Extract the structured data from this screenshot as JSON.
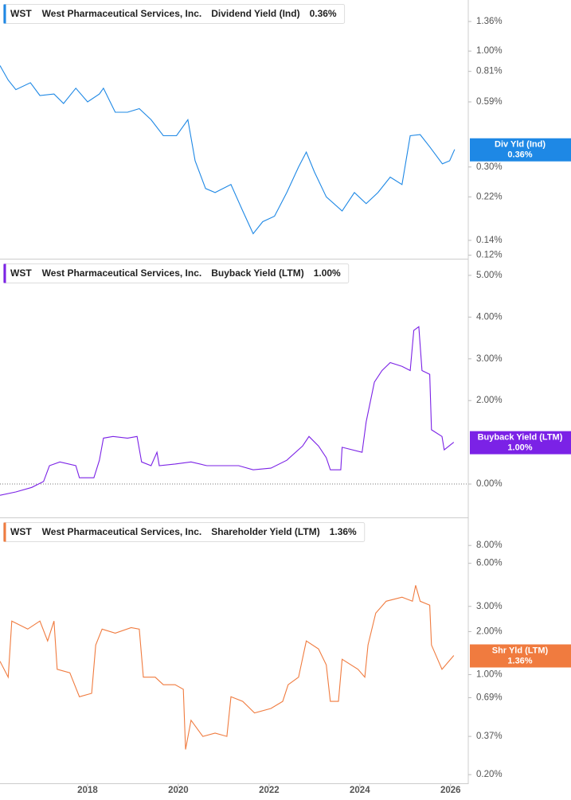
{
  "chart_data": [
    {
      "type": "line",
      "ticker": "WST",
      "company": "West Pharmaceutical Services, Inc.",
      "log": true,
      "xlim": [
        2016.07,
        2026.39
      ],
      "ylim": [
        0.1157,
        1.7
      ],
      "yticks": [
        {
          "value": 1.36,
          "label": "1.36%"
        },
        {
          "value": 1.0,
          "label": "1.00%"
        },
        {
          "value": 0.81,
          "label": "0.81%"
        },
        {
          "value": 0.59,
          "label": "0.59%"
        },
        {
          "value": 0.3,
          "label": "0.30%"
        },
        {
          "value": 0.22,
          "label": "0.22%"
        },
        {
          "value": 0.14,
          "label": "0.14%"
        },
        {
          "value": 0.12,
          "label": "0.12%"
        }
      ],
      "series": [
        {
          "name": "Dividend Yield (Ind)",
          "short_name": "Div Yld (Ind)",
          "last_label": "0.36%",
          "color": "#1e88e5",
          "x": [
            2016.07,
            2016.25,
            2016.42,
            2016.74,
            2016.95,
            2017.26,
            2017.47,
            2017.74,
            2018.0,
            2018.26,
            2018.35,
            2018.61,
            2018.88,
            2019.14,
            2019.4,
            2019.67,
            2019.96,
            2020.21,
            2020.37,
            2020.6,
            2020.81,
            2021.16,
            2021.42,
            2021.65,
            2021.86,
            2022.12,
            2022.39,
            2022.65,
            2022.82,
            2023.0,
            2023.26,
            2023.61,
            2023.88,
            2024.14,
            2024.4,
            2024.67,
            2024.93,
            2025.11,
            2025.33,
            2025.54,
            2025.82,
            2025.98,
            2026.09
          ],
          "values": [
            0.86,
            0.74,
            0.67,
            0.72,
            0.63,
            0.64,
            0.58,
            0.68,
            0.59,
            0.64,
            0.68,
            0.53,
            0.53,
            0.55,
            0.49,
            0.415,
            0.415,
            0.49,
            0.32,
            0.24,
            0.23,
            0.25,
            0.19,
            0.15,
            0.17,
            0.18,
            0.23,
            0.3,
            0.35,
            0.285,
            0.22,
            0.19,
            0.23,
            0.205,
            0.23,
            0.27,
            0.25,
            0.415,
            0.42,
            0.37,
            0.31,
            0.32,
            0.36
          ]
        }
      ]
    },
    {
      "type": "line",
      "ticker": "WST",
      "company": "West Pharmaceutical Services, Inc.",
      "log": false,
      "zero_line": true,
      "xlim": [
        2016.07,
        2026.39
      ],
      "ylim": [
        -0.8,
        5.38
      ],
      "yticks": [
        {
          "value": 5,
          "label": "5.00%"
        },
        {
          "value": 4,
          "label": "4.00%"
        },
        {
          "value": 3,
          "label": "3.00%"
        },
        {
          "value": 2,
          "label": "2.00%"
        },
        {
          "value": 0,
          "label": "0.00%"
        }
      ],
      "series": [
        {
          "name": "Buyback Yield (LTM)",
          "short_name": "Buyback Yield (LTM)",
          "last_label": "1.00%",
          "color": "#7b22e6",
          "x": [
            2016.07,
            2016.42,
            2016.77,
            2017.03,
            2017.16,
            2017.39,
            2017.74,
            2017.82,
            2018.14,
            2018.26,
            2018.35,
            2018.56,
            2018.88,
            2019.09,
            2019.19,
            2019.4,
            2019.53,
            2019.58,
            2019.93,
            2020.28,
            2020.63,
            2020.98,
            2021.33,
            2021.65,
            2022.04,
            2022.39,
            2022.74,
            2022.88,
            2023.09,
            2023.26,
            2023.35,
            2023.58,
            2023.61,
            2024.05,
            2024.14,
            2024.32,
            2024.49,
            2024.67,
            2024.93,
            2025.11,
            2025.19,
            2025.3,
            2025.37,
            2025.54,
            2025.58,
            2025.81,
            2025.86,
            2026.07
          ],
          "values": [
            -0.27,
            -0.19,
            -0.08,
            0.06,
            0.44,
            0.53,
            0.44,
            0.15,
            0.15,
            0.57,
            1.1,
            1.14,
            1.1,
            1.14,
            0.53,
            0.44,
            0.76,
            0.44,
            0.48,
            0.53,
            0.44,
            0.44,
            0.44,
            0.34,
            0.38,
            0.57,
            0.91,
            1.14,
            0.91,
            0.63,
            0.34,
            0.34,
            0.88,
            0.76,
            1.49,
            2.44,
            2.72,
            2.91,
            2.82,
            2.72,
            3.68,
            3.77,
            2.72,
            2.63,
            1.3,
            1.14,
            0.82,
            1.0
          ]
        }
      ]
    },
    {
      "type": "line",
      "ticker": "WST",
      "company": "West Pharmaceutical Services, Inc.",
      "log": true,
      "xlim": [
        2016.07,
        2026.39
      ],
      "ylim": [
        0.174,
        12.4
      ],
      "xticks": [
        2018,
        2020,
        2022,
        2024,
        2026
      ],
      "yticks": [
        {
          "value": 8,
          "label": "8.00%"
        },
        {
          "value": 6,
          "label": "6.00%"
        },
        {
          "value": 3,
          "label": "3.00%"
        },
        {
          "value": 2,
          "label": "2.00%"
        },
        {
          "value": 1,
          "label": "1.00%"
        },
        {
          "value": 0.69,
          "label": "0.69%"
        },
        {
          "value": 0.37,
          "label": "0.37%"
        },
        {
          "value": 0.2,
          "label": "0.20%"
        }
      ],
      "series": [
        {
          "name": "Shareholder Yield (LTM)",
          "short_name": "Shr Yld (LTM)",
          "last_label": "1.36%",
          "color": "#f07b3f",
          "x": [
            2016.07,
            2016.25,
            2016.33,
            2016.68,
            2016.95,
            2017.12,
            2017.26,
            2017.33,
            2017.61,
            2017.82,
            2018.09,
            2018.18,
            2018.32,
            2018.61,
            2018.96,
            2019.14,
            2019.23,
            2019.49,
            2019.67,
            2019.93,
            2020.11,
            2020.16,
            2020.28,
            2020.54,
            2020.81,
            2021.07,
            2021.16,
            2021.42,
            2021.68,
            2022.04,
            2022.3,
            2022.42,
            2022.65,
            2022.82,
            2023.09,
            2023.26,
            2023.35,
            2023.53,
            2023.61,
            2023.96,
            2024.11,
            2024.18,
            2024.35,
            2024.58,
            2024.93,
            2025.16,
            2025.23,
            2025.33,
            2025.54,
            2025.58,
            2025.81,
            2026.07
          ],
          "values": [
            1.24,
            0.96,
            2.37,
            2.08,
            2.37,
            1.72,
            2.37,
            1.09,
            1.03,
            0.7,
            0.74,
            1.61,
            2.08,
            1.95,
            2.13,
            2.08,
            0.96,
            0.96,
            0.85,
            0.85,
            0.79,
            0.3,
            0.48,
            0.37,
            0.39,
            0.37,
            0.7,
            0.65,
            0.54,
            0.58,
            0.65,
            0.85,
            0.96,
            1.72,
            1.51,
            1.17,
            0.65,
            0.65,
            1.28,
            1.09,
            0.96,
            1.61,
            2.69,
            3.26,
            3.48,
            3.26,
            4.21,
            3.26,
            3.06,
            1.61,
            1.09,
            1.36
          ]
        }
      ]
    }
  ]
}
